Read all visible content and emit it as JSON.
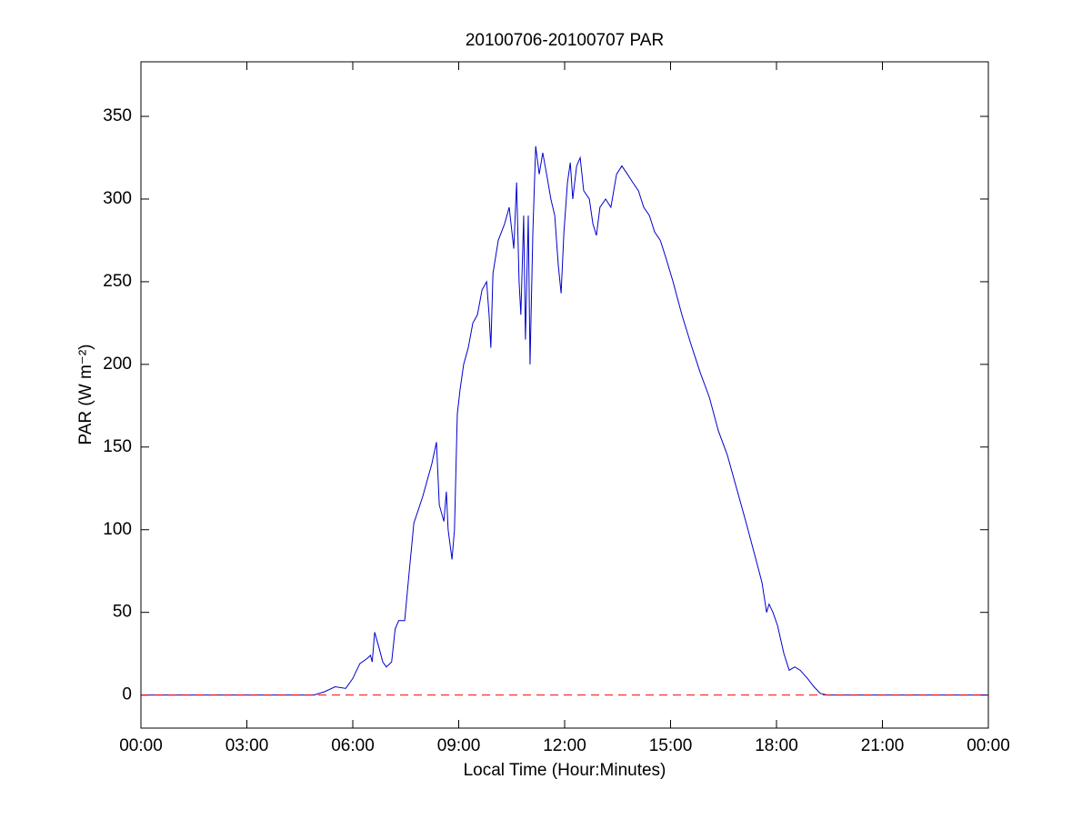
{
  "chart_data": {
    "type": "line",
    "title": "20100706-20100707 PAR",
    "xlabel": "Local Time (Hour:Minutes)",
    "ylabel": "PAR (W m⁻²)",
    "xlim": [
      0,
      24
    ],
    "ylim": [
      -20,
      383
    ],
    "xticks": [
      {
        "value": 0,
        "label": "00:00"
      },
      {
        "value": 3,
        "label": "03:00"
      },
      {
        "value": 6,
        "label": "06:00"
      },
      {
        "value": 9,
        "label": "09:00"
      },
      {
        "value": 12,
        "label": "12:00"
      },
      {
        "value": 15,
        "label": "15:00"
      },
      {
        "value": 18,
        "label": "18:00"
      },
      {
        "value": 21,
        "label": "21:00"
      },
      {
        "value": 24,
        "label": "00:00"
      }
    ],
    "yticks": [
      0,
      50,
      100,
      150,
      200,
      250,
      300,
      350
    ],
    "grid": false,
    "series": [
      {
        "color": "#0000cc",
        "x": [
          0,
          4.9,
          5.2,
          5.5,
          5.8,
          6.0,
          6.2,
          6.4,
          6.5,
          6.55,
          6.62,
          6.75,
          6.85,
          6.95,
          7.1,
          7.2,
          7.3,
          7.47,
          7.6,
          7.73,
          7.98,
          8.24,
          8.37,
          8.45,
          8.58,
          8.65,
          8.7,
          8.81,
          8.88,
          8.96,
          9.04,
          9.14,
          9.27,
          9.4,
          9.53,
          9.66,
          9.79,
          9.86,
          9.91,
          9.97,
          10.12,
          10.3,
          10.43,
          10.56,
          10.64,
          10.71,
          10.76,
          10.84,
          10.89,
          10.97,
          11.02,
          11.1,
          11.18,
          11.28,
          11.38,
          11.49,
          11.61,
          11.72,
          11.82,
          11.9,
          11.98,
          12.08,
          12.16,
          12.23,
          12.34,
          12.44,
          12.54,
          12.7,
          12.8,
          12.9,
          13.0,
          13.16,
          13.31,
          13.47,
          13.62,
          13.78,
          13.93,
          14.09,
          14.24,
          14.4,
          14.55,
          14.71,
          14.86,
          15.07,
          15.32,
          15.58,
          15.84,
          16.1,
          16.35,
          16.61,
          16.87,
          17.13,
          17.38,
          17.59,
          17.72,
          17.79,
          17.9,
          18.03,
          18.21,
          18.36,
          18.52,
          18.67,
          18.88,
          19.06,
          19.24,
          19.44,
          24
        ],
        "values": [
          0,
          0,
          2,
          5,
          4,
          10,
          19,
          22,
          24,
          20,
          38,
          28,
          20,
          17,
          20,
          40,
          45,
          45,
          75,
          104,
          120,
          140,
          153,
          115,
          105,
          123,
          100,
          82,
          100,
          170,
          185,
          200,
          210,
          225,
          230,
          245,
          250,
          230,
          210,
          255,
          275,
          285,
          295,
          270,
          310,
          250,
          230,
          290,
          215,
          290,
          200,
          280,
          332,
          315,
          328,
          315,
          300,
          290,
          260,
          243,
          280,
          310,
          322,
          300,
          320,
          325,
          305,
          300,
          285,
          278,
          295,
          300,
          295,
          315,
          320,
          315,
          310,
          305,
          295,
          290,
          280,
          275,
          265,
          250,
          230,
          212,
          195,
          180,
          160,
          145,
          125,
          105,
          85,
          68,
          50,
          55,
          50,
          42,
          25,
          15,
          17,
          15,
          10,
          5,
          1,
          0,
          0
        ]
      },
      {
        "color": "#ff0000",
        "dashed": true,
        "x": [
          0,
          24
        ],
        "values": [
          0,
          0
        ]
      }
    ]
  }
}
